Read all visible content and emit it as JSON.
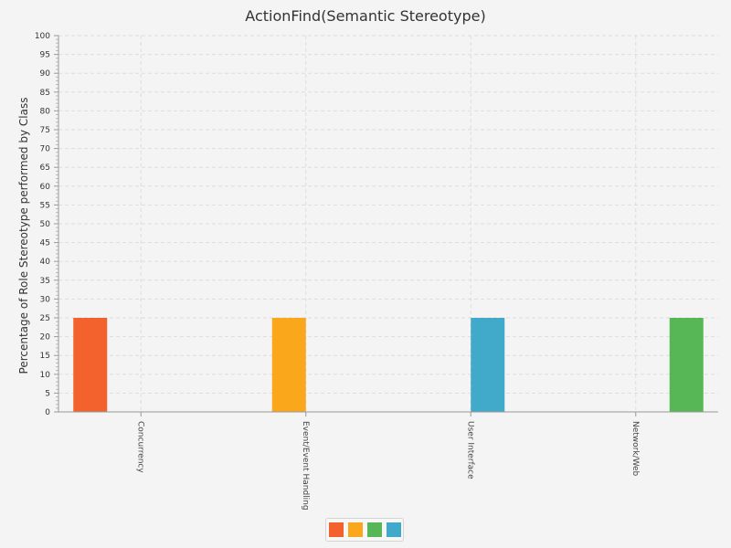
{
  "chart_data": {
    "type": "bar",
    "title": "ActionFind(Semantic Stereotype)",
    "ylabel": "Percentage of Role Stereotype performed by Class",
    "xlabel": "",
    "ylim": [
      0,
      100
    ],
    "ytick_step": 5,
    "grid": true,
    "categories": [
      "Concurrency",
      "Event/Event Handling",
      "User Interface",
      "Network/Web"
    ],
    "series": [
      {
        "values": [
          25,
          0,
          0,
          0
        ],
        "color": "#f3622d"
      },
      {
        "values": [
          0,
          25,
          0,
          0
        ],
        "color": "#fba71b"
      },
      {
        "values": [
          0,
          0,
          25,
          0
        ],
        "color": "#41a9c9"
      },
      {
        "values": [
          0,
          0,
          0,
          25
        ],
        "color": "#57b757"
      }
    ],
    "legend": {
      "placement": "bottom-center",
      "swatch_colors": [
        "#f3622d",
        "#fba71b",
        "#57b757",
        "#41a9c9"
      ]
    }
  }
}
